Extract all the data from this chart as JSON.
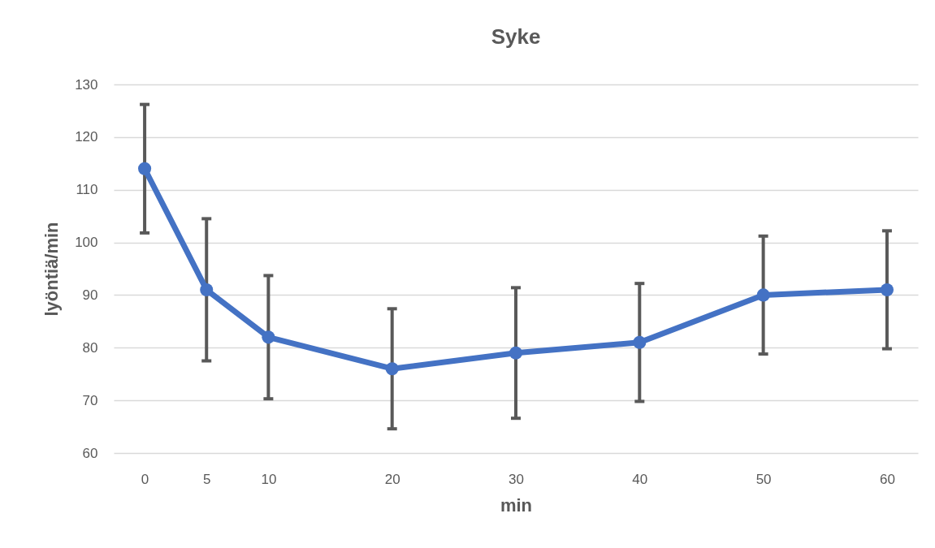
{
  "chart_data": {
    "type": "line",
    "title": "Syke",
    "xlabel": "min",
    "ylabel": "lyöntiä/min",
    "x": [
      0,
      5,
      10,
      20,
      30,
      40,
      50,
      60
    ],
    "series": [
      {
        "color": "#4472c4",
        "values": [
          114,
          91,
          82,
          76,
          79,
          81,
          90,
          91
        ],
        "errors": [
          12.2,
          13.5,
          11.7,
          11.4,
          12.4,
          11.2,
          11.2,
          11.2
        ]
      }
    ],
    "xlim": [
      -2.5,
      62.5
    ],
    "xticks": [
      0,
      5,
      10,
      20,
      30,
      40,
      50,
      60
    ],
    "ylim": [
      60,
      130
    ],
    "yticks": [
      60,
      70,
      80,
      90,
      100,
      110,
      120,
      130
    ],
    "grid": "y",
    "marker": "circle",
    "line_style": "solid"
  }
}
